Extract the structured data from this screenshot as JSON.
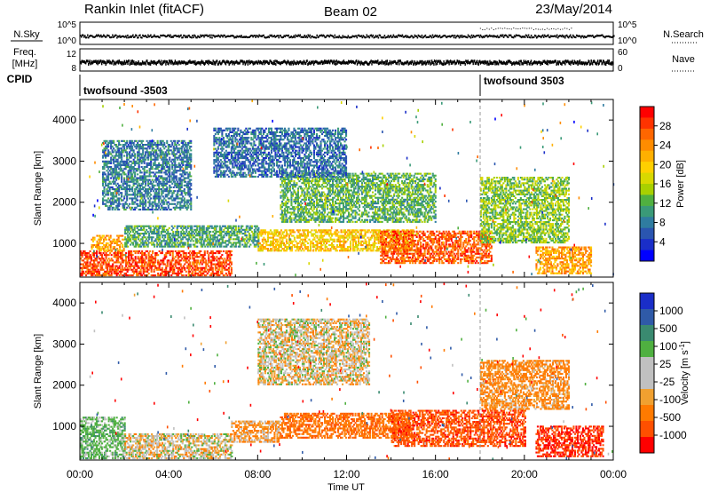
{
  "header": {
    "station": "Rankin Inlet (fitACF)",
    "beam": "Beam 02",
    "date": "23/May/2014"
  },
  "top_panels": {
    "nsky_label": "N.Sky",
    "nsky_ticks": [
      "10^5",
      "10^0"
    ],
    "nsearch_label": "N.Search",
    "nsearch_ticks": [
      "10^5",
      "10^0"
    ],
    "freq_label": "Freq.",
    "freq_unit": "[MHz]",
    "freq_ticks": [
      "12",
      "8"
    ],
    "nave_label": "Nave",
    "nave_ticks": [
      "60",
      "0"
    ],
    "cpid_label": "CPID",
    "cpid_segments": [
      {
        "text": "twofsound -3503",
        "start_hour": 0
      },
      {
        "text": "twofsound 3503",
        "start_hour": 18
      }
    ]
  },
  "power_colorbar": {
    "title": "Power [dB]",
    "ticks": [
      "28",
      "24",
      "20",
      "16",
      "12",
      "8",
      "4"
    ],
    "colors": [
      "#ff0000",
      "#ff3300",
      "#ff6600",
      "#ff8c00",
      "#ffb000",
      "#ffd000",
      "#d8d800",
      "#a8d000",
      "#50b040",
      "#3a9a78",
      "#2f7ca0",
      "#2a55b0",
      "#1a2ec8",
      "#0000ff"
    ]
  },
  "velocity_colorbar": {
    "title": "Velocity [m s",
    "title_sup": "-1",
    "title_end": "]",
    "ticks": [
      "1000",
      "500",
      "100",
      "25",
      "-25",
      "-100",
      "-500",
      "-1000"
    ],
    "colors": [
      "#1a2ec8",
      "#2f5aa8",
      "#3a8a70",
      "#4fb040",
      "#c0c0c0",
      "#c0c0c0",
      "#f0a030",
      "#ff7a00",
      "#ff5000",
      "#ff0000"
    ]
  },
  "x_axis": {
    "title": "Time UT",
    "ticks": [
      "00:00",
      "04:00",
      "08:00",
      "12:00",
      "16:00",
      "20:00",
      "00:00"
    ]
  },
  "chart_data": [
    {
      "type": "heatmap",
      "title": "Power",
      "ylabel": "Slant Range [km]",
      "xlabel": "",
      "xlim": [
        0,
        24
      ],
      "ylim": [
        180,
        4500
      ],
      "yticks": [
        "4000",
        "3000",
        "2000",
        "1000"
      ],
      "zlabel": "Power [dB]",
      "zlim": [
        0,
        30
      ],
      "regions": [
        {
          "t": [
            0.0,
            6.8
          ],
          "r": [
            200,
            800
          ],
          "value": 27
        },
        {
          "t": [
            0.5,
            2.0
          ],
          "r": [
            800,
            1200
          ],
          "value": 22
        },
        {
          "t": [
            2.0,
            8.0
          ],
          "r": [
            900,
            1400
          ],
          "value": 10
        },
        {
          "t": [
            8.0,
            15.0
          ],
          "r": [
            800,
            1300
          ],
          "value": 19
        },
        {
          "t": [
            9.0,
            16.0
          ],
          "r": [
            1500,
            2700
          ],
          "value": 11
        },
        {
          "t": [
            13.5,
            18.5
          ],
          "r": [
            500,
            1300
          ],
          "value": 26
        },
        {
          "t": [
            18.0,
            22.0
          ],
          "r": [
            1000,
            2600
          ],
          "value": 13
        },
        {
          "t": [
            20.5,
            23.0
          ],
          "r": [
            250,
            900
          ],
          "value": 22
        },
        {
          "t": [
            1.0,
            5.0
          ],
          "r": [
            1800,
            3500
          ],
          "value": 7
        },
        {
          "t": [
            6.0,
            12.0
          ],
          "r": [
            2600,
            3800
          ],
          "value": 6
        }
      ]
    },
    {
      "type": "heatmap",
      "title": "Velocity",
      "ylabel": "Slant Range [km]",
      "xlabel": "Time UT",
      "xlim": [
        0,
        24
      ],
      "ylim": [
        180,
        4500
      ],
      "yticks": [
        "4000",
        "3000",
        "2000",
        "1000"
      ],
      "zlabel": "Velocity [m s-1]",
      "zlim": [
        -1000,
        1000
      ],
      "regions": [
        {
          "t": [
            0.0,
            2.0
          ],
          "r": [
            200,
            1200
          ],
          "value": 200
        },
        {
          "t": [
            2.0,
            6.8
          ],
          "r": [
            200,
            800
          ],
          "value": 0
        },
        {
          "t": [
            6.8,
            9.0
          ],
          "r": [
            600,
            1100
          ],
          "value": -100
        },
        {
          "t": [
            8.0,
            13.0
          ],
          "r": [
            2000,
            3600
          ],
          "value": 0
        },
        {
          "t": [
            9.0,
            15.0
          ],
          "r": [
            700,
            1300
          ],
          "value": -250
        },
        {
          "t": [
            14.0,
            20.0
          ],
          "r": [
            500,
            1400
          ],
          "value": -400
        },
        {
          "t": [
            18.0,
            22.0
          ],
          "r": [
            1400,
            2600
          ],
          "value": -150
        },
        {
          "t": [
            20.5,
            23.5
          ],
          "r": [
            250,
            1000
          ],
          "value": -500
        }
      ]
    }
  ]
}
